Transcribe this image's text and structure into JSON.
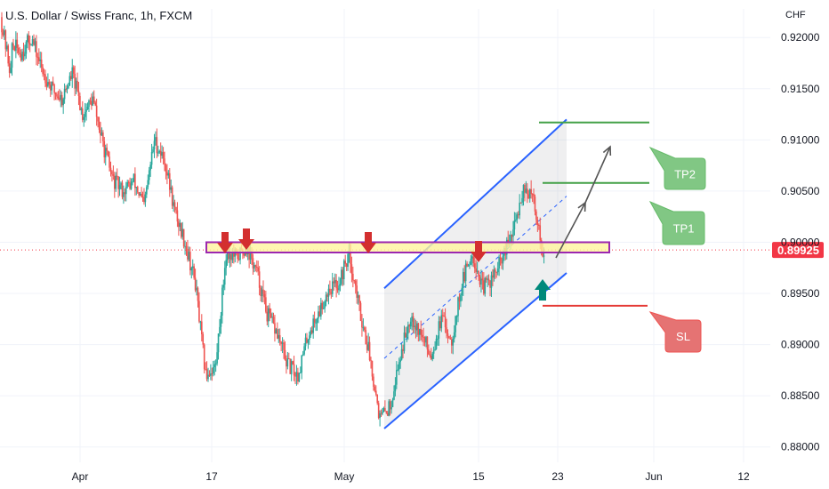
{
  "chart_title": "U.S. Dollar / Swiss Franc, 1h, FXCM",
  "currency": "CHF",
  "last_price": "0.89925",
  "colors": {
    "up": "#26a69a",
    "down": "#ef5350",
    "channel": "#2962ff",
    "zone_fill": "#fff59d",
    "zone_border": "#9c27b0",
    "arrow_down": "#d32f2f",
    "arrow_up": "#00897b",
    "tp_box": "#81c784",
    "sl_box": "#e57373",
    "price_tag": "#f23645"
  },
  "annotations": {
    "tp2": "TP2",
    "tp1": "TP1",
    "sl": "SL"
  },
  "chart_data": {
    "type": "candlestick",
    "title": "U.S. Dollar / Swiss Franc, 1h, FXCM",
    "y_axis_unit": "CHF",
    "y_ticks": [
      "0.92000",
      "0.91500",
      "0.91000",
      "0.90500",
      "0.90000",
      "0.89500",
      "0.89000",
      "0.88500",
      "0.88000"
    ],
    "x_ticks": [
      "Apr",
      "17",
      "May",
      "15",
      "23",
      "Jun",
      "12"
    ],
    "ylim": [
      0.8785,
      0.9228
    ],
    "grid": true,
    "approx_close_path": [
      [
        0.922,
        0.9165
      ],
      [
        0.9195,
        0.9185
      ],
      [
        0.9185,
        0.92
      ],
      [
        0.92,
        0.917
      ],
      [
        0.917,
        0.915
      ],
      [
        0.915,
        0.914
      ],
      [
        0.914,
        0.9165
      ],
      [
        0.9165,
        0.9125
      ],
      [
        0.9125,
        0.914
      ],
      [
        0.914,
        0.9095
      ],
      [
        0.9095,
        0.906
      ],
      [
        0.906,
        0.905
      ],
      [
        0.905,
        0.906
      ],
      [
        0.906,
        0.9035
      ],
      [
        0.9035,
        0.91
      ],
      [
        0.91,
        0.908
      ],
      [
        0.908,
        0.903
      ],
      [
        0.903,
        0.9
      ],
      [
        0.9,
        0.896
      ],
      [
        0.896,
        0.887
      ],
      [
        0.887,
        0.888
      ],
      [
        0.888,
        0.899
      ],
      [
        0.899,
        0.8985
      ],
      [
        0.8985,
        0.8995
      ],
      [
        0.8995,
        0.897
      ],
      [
        0.897,
        0.893
      ],
      [
        0.893,
        0.891
      ],
      [
        0.891,
        0.888
      ],
      [
        0.888,
        0.887
      ],
      [
        0.887,
        0.891
      ],
      [
        0.891,
        0.893
      ],
      [
        0.893,
        0.8955
      ],
      [
        0.8955,
        0.896
      ],
      [
        0.896,
        0.899
      ],
      [
        0.899,
        0.8935
      ],
      [
        0.8935,
        0.889
      ],
      [
        0.889,
        0.8828
      ],
      [
        0.8828,
        0.884
      ],
      [
        0.884,
        0.889
      ],
      [
        0.889,
        0.893
      ],
      [
        0.893,
        0.891
      ],
      [
        0.891,
        0.889
      ],
      [
        0.889,
        0.8925
      ],
      [
        0.8925,
        0.8905
      ],
      [
        0.8905,
        0.896
      ],
      [
        0.896,
        0.899
      ],
      [
        0.899,
        0.8955
      ],
      [
        0.8955,
        0.8965
      ],
      [
        0.8965,
        0.8985
      ],
      [
        0.8985,
        0.901
      ],
      [
        0.901,
        0.9055
      ],
      [
        0.9055,
        0.904
      ],
      [
        0.904,
        0.8985
      ]
    ],
    "levels": {
      "resistance_zone": [
        0.899,
        0.9
      ],
      "tp1": 0.9058,
      "tp2": 0.9117,
      "sl": 0.8938
    }
  }
}
